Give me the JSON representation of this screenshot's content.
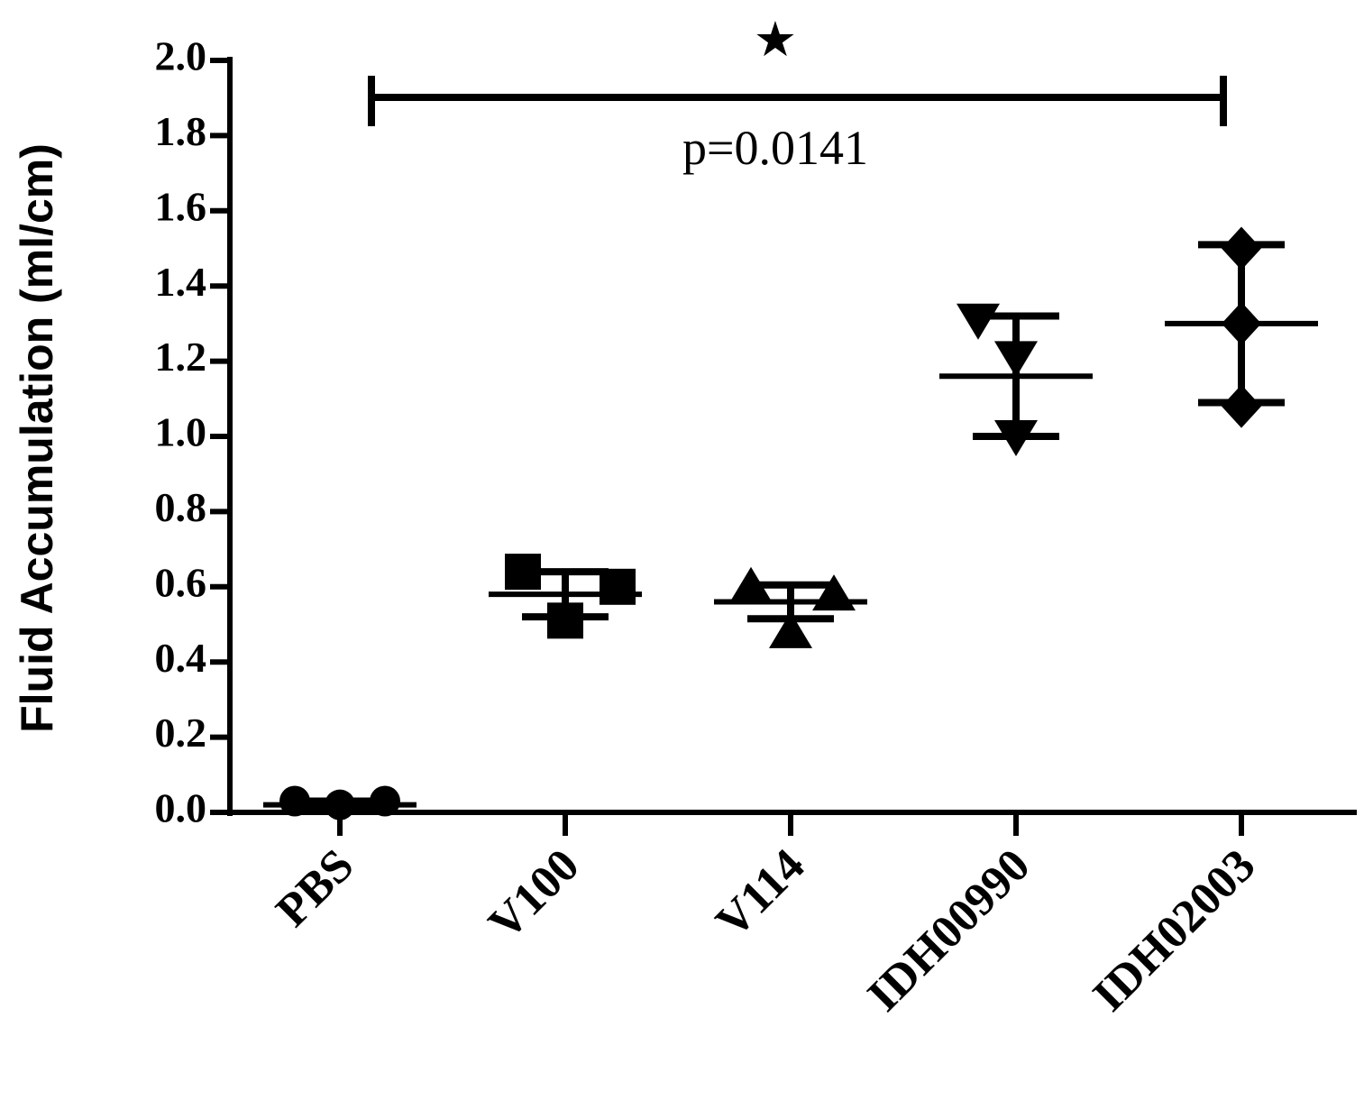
{
  "chart_data": {
    "type": "scatter-dot",
    "y_label": "Fluid Accumulation (ml/cm)",
    "annotation_star": "★",
    "annotation_text": "p=0.0141",
    "categories": [
      "PBS",
      "V100",
      "V114",
      "IDH00990",
      "IDH02003"
    ],
    "groups": [
      {
        "marker": "circle",
        "values": [
          0.03,
          0.02,
          0.03
        ],
        "mean": 0.02,
        "sd": 0.01
      },
      {
        "marker": "square",
        "values": [
          0.64,
          0.6,
          0.51
        ],
        "mean": 0.58,
        "sd": 0.06
      },
      {
        "marker": "triangle",
        "values": [
          0.6,
          0.58,
          0.48
        ],
        "mean": 0.56,
        "sd": 0.045
      },
      {
        "marker": "triangle-down",
        "values": [
          1.31,
          1.21,
          1.0
        ],
        "mean": 1.16,
        "sd": 0.16
      },
      {
        "marker": "diamond",
        "values": [
          1.5,
          1.3,
          1.08
        ],
        "mean": 1.3,
        "sd": 0.21
      }
    ],
    "color": "#000000",
    "ylim": [
      0,
      2.0
    ],
    "yticks": [
      {
        "value": 0,
        "label": "0.0"
      },
      {
        "value": 0.2,
        "label": "0.2"
      },
      {
        "value": 0.4,
        "label": "0.4"
      },
      {
        "value": 0.6,
        "label": "0.6"
      },
      {
        "value": 0.8,
        "label": "0.8"
      },
      {
        "value": 1.0,
        "label": "1.0"
      },
      {
        "value": 1.2,
        "label": "1.2"
      },
      {
        "value": 1.4,
        "label": "1.4"
      },
      {
        "value": 1.6,
        "label": "1.6"
      },
      {
        "value": 1.8,
        "label": "1.8"
      },
      {
        "value": 2.0,
        "label": "2.0"
      }
    ]
  }
}
